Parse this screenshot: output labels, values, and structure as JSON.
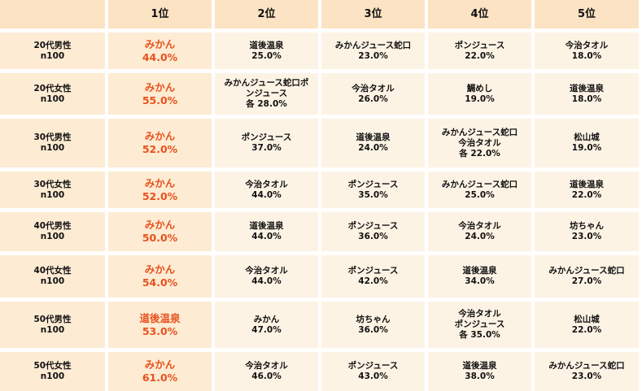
{
  "table": {
    "header": [
      "",
      "1位",
      "2位",
      "3位",
      "4位",
      "5位"
    ],
    "rows": [
      {
        "group": [
          "20代男性",
          "n100"
        ],
        "cells": [
          [
            "みかん",
            "44.0%"
          ],
          [
            "道後温泉",
            "25.0%"
          ],
          [
            "みかんジュース蛇口",
            "23.0%"
          ],
          [
            "ポンジュース",
            "22.0%"
          ],
          [
            "今治タオル",
            "18.0%"
          ]
        ]
      },
      {
        "group": [
          "20代女性",
          "n100"
        ],
        "cells": [
          [
            "みかん",
            "55.0%"
          ],
          [
            "みかんジュース蛇口ポ",
            "ンジュース",
            "各 28.0%"
          ],
          [
            "今治タオル",
            "26.0%"
          ],
          [
            "鯛めし",
            "19.0%"
          ],
          [
            "道後温泉",
            "18.0%"
          ]
        ]
      },
      {
        "group": [
          "30代男性",
          "n100"
        ],
        "cells": [
          [
            "みかん",
            "52.0%"
          ],
          [
            "ポンジュース",
            "37.0%"
          ],
          [
            "道後温泉",
            "24.0%"
          ],
          [
            "みかんジュース蛇口",
            "今治タオル",
            "各 22.0%"
          ],
          [
            "松山城",
            "19.0%"
          ]
        ]
      },
      {
        "group": [
          "30代女性",
          "n100"
        ],
        "cells": [
          [
            "みかん",
            "52.0%"
          ],
          [
            "今治タオル",
            "44.0%"
          ],
          [
            "ポンジュース",
            "35.0%"
          ],
          [
            "みかんジュース蛇口",
            "25.0%"
          ],
          [
            "道後温泉",
            "22.0%"
          ]
        ]
      },
      {
        "group": [
          "40代男性",
          "n100"
        ],
        "cells": [
          [
            "みかん",
            "50.0%"
          ],
          [
            "道後温泉",
            "44.0%"
          ],
          [
            "ポンジュース",
            "36.0%"
          ],
          [
            "今治タオル",
            "24.0%"
          ],
          [
            "坊ちゃん",
            "23.0%"
          ]
        ]
      },
      {
        "group": [
          "40代女性",
          "n100"
        ],
        "cells": [
          [
            "みかん",
            "54.0%"
          ],
          [
            "今治タオル",
            "44.0%"
          ],
          [
            "ポンジュース",
            "42.0%"
          ],
          [
            "道後温泉",
            "34.0%"
          ],
          [
            "みかんジュース蛇口",
            "27.0%"
          ]
        ]
      },
      {
        "group": [
          "50代男性",
          "n100"
        ],
        "cells": [
          [
            "道後温泉",
            "53.0%"
          ],
          [
            "みかん",
            "47.0%"
          ],
          [
            "坊ちゃん",
            "36.0%"
          ],
          [
            "今治タオル",
            "ポンジュース",
            "各 35.0%"
          ],
          [
            "松山城",
            "22.0%"
          ]
        ]
      },
      {
        "group": [
          "50代女性",
          "n100"
        ],
        "cells": [
          [
            "みかん",
            "61.0%"
          ],
          [
            "今治タオル",
            "46.0%"
          ],
          [
            "ポンジュース",
            "43.0%"
          ],
          [
            "道後温泉",
            "38.0%"
          ],
          [
            "みかんジュース蛇口",
            "23.0%"
          ]
        ]
      }
    ]
  },
  "colors": {
    "header_bg": "#fce3c3",
    "label_bg": "#fdebd3",
    "cell_bg": "#fdf3e5",
    "rank1_text": "#e8521e",
    "text": "#111111"
  }
}
